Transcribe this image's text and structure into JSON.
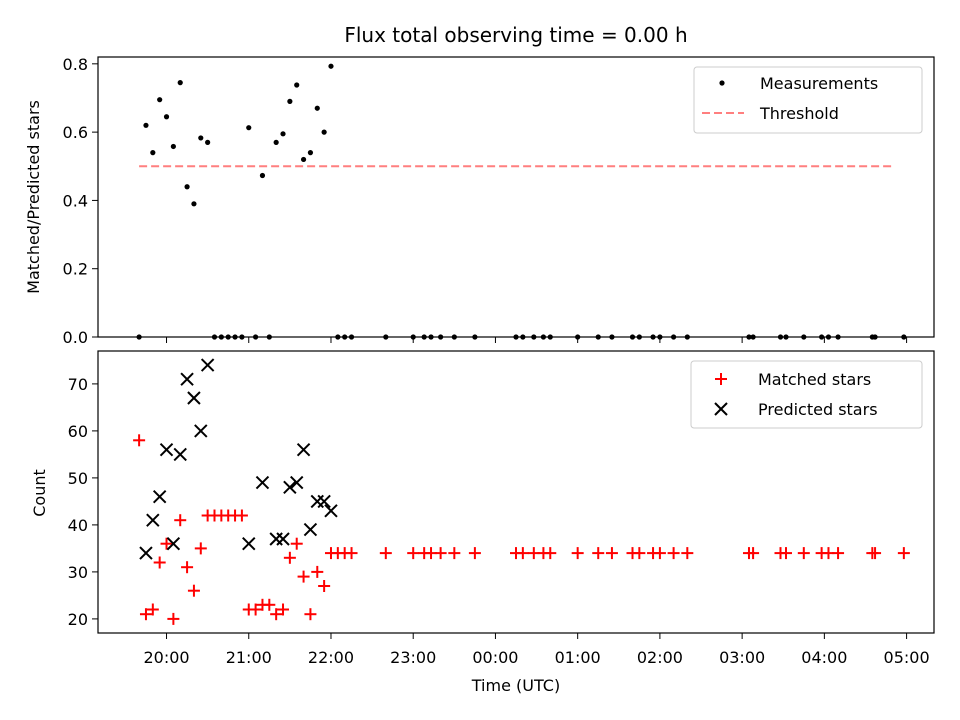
{
  "chart_data": [
    {
      "type": "scatter",
      "title": "Flux total observing time = 0.00 h",
      "xlabel": "",
      "ylabel": "Matched/Predicted stars",
      "ylim": [
        0,
        0.82
      ],
      "yticks": [
        "0.0",
        "0.2",
        "0.4",
        "0.6",
        "0.8"
      ],
      "ytick_values": [
        0,
        0.2,
        0.4,
        0.6,
        0.8
      ],
      "legend": {
        "placement": "top-right",
        "entries": [
          "Measurements",
          "Threshold"
        ]
      },
      "threshold": {
        "name": "Threshold",
        "value": 0.5,
        "x_start": "19:40",
        "x_end": "04:50",
        "color": "#ff7f7f"
      },
      "series": [
        {
          "name": "Measurements",
          "marker": "dot",
          "color": "#000000",
          "points": [
            [
              "19:40",
              0.0
            ],
            [
              "19:45",
              0.62
            ],
            [
              "19:50",
              0.54
            ],
            [
              "19:55",
              0.695
            ],
            [
              "20:00",
              0.645
            ],
            [
              "20:05",
              0.558
            ],
            [
              "20:10",
              0.745
            ],
            [
              "20:15",
              0.44
            ],
            [
              "20:20",
              0.39
            ],
            [
              "20:25",
              0.583
            ],
            [
              "20:30",
              0.57
            ],
            [
              "20:35",
              0.0
            ],
            [
              "20:40",
              0.0
            ],
            [
              "20:45",
              0.0
            ],
            [
              "20:50",
              0.0
            ],
            [
              "20:55",
              0.0
            ],
            [
              "21:00",
              0.613
            ],
            [
              "21:05",
              0.0
            ],
            [
              "21:10",
              0.473
            ],
            [
              "21:15",
              0.0
            ],
            [
              "21:20",
              0.57
            ],
            [
              "21:25",
              0.595
            ],
            [
              "21:30",
              0.69
            ],
            [
              "21:35",
              0.738
            ],
            [
              "21:40",
              0.52
            ],
            [
              "21:45",
              0.54
            ],
            [
              "21:50",
              0.67
            ],
            [
              "21:55",
              0.6
            ],
            [
              "22:00",
              0.793
            ],
            [
              "22:05",
              0.0
            ],
            [
              "22:10",
              0.0
            ],
            [
              "22:15",
              0.0
            ],
            [
              "22:40",
              0.0
            ],
            [
              "23:00",
              0.0
            ],
            [
              "23:08",
              0.0
            ],
            [
              "23:13",
              0.0
            ],
            [
              "23:20",
              0.0
            ],
            [
              "23:30",
              0.0
            ],
            [
              "23:45",
              0.0
            ],
            [
              "00:15",
              0.0
            ],
            [
              "00:20",
              0.0
            ],
            [
              "00:28",
              0.0
            ],
            [
              "00:35",
              0.0
            ],
            [
              "00:40",
              0.0
            ],
            [
              "01:00",
              0.0
            ],
            [
              "01:15",
              0.0
            ],
            [
              "01:25",
              0.0
            ],
            [
              "01:40",
              0.0
            ],
            [
              "01:45",
              0.0
            ],
            [
              "01:55",
              0.0
            ],
            [
              "02:00",
              0.0
            ],
            [
              "02:10",
              0.0
            ],
            [
              "02:20",
              0.0
            ],
            [
              "03:05",
              0.0
            ],
            [
              "03:08",
              0.0
            ],
            [
              "03:28",
              0.0
            ],
            [
              "03:32",
              0.0
            ],
            [
              "03:45",
              0.0
            ],
            [
              "03:58",
              0.0
            ],
            [
              "04:03",
              0.0
            ],
            [
              "04:10",
              0.0
            ],
            [
              "04:35",
              0.0
            ],
            [
              "04:37",
              0.0
            ],
            [
              "04:58",
              0.0
            ]
          ]
        }
      ]
    },
    {
      "type": "scatter",
      "title": "",
      "xlabel": "Time (UTC)",
      "ylabel": "Count",
      "ylim": [
        17,
        77
      ],
      "yticks": [
        "20",
        "30",
        "40",
        "50",
        "60",
        "70"
      ],
      "ytick_values": [
        20,
        30,
        40,
        50,
        60,
        70
      ],
      "xticks": [
        "20:00",
        "21:00",
        "22:00",
        "23:00",
        "00:00",
        "01:00",
        "02:00",
        "03:00",
        "04:00",
        "05:00"
      ],
      "xlim": [
        "19:10",
        "05:20"
      ],
      "legend": {
        "placement": "top-right",
        "entries": [
          "Matched stars",
          "Predicted stars"
        ]
      },
      "series": [
        {
          "name": "Matched stars",
          "marker": "plus",
          "color": "#ff0000",
          "points": [
            [
              "19:40",
              58
            ],
            [
              "19:45",
              21
            ],
            [
              "19:50",
              22
            ],
            [
              "19:55",
              32
            ],
            [
              "20:00",
              36
            ],
            [
              "20:05",
              20
            ],
            [
              "20:10",
              41
            ],
            [
              "20:15",
              31
            ],
            [
              "20:20",
              26
            ],
            [
              "20:25",
              35
            ],
            [
              "20:30",
              42
            ],
            [
              "20:35",
              42
            ],
            [
              "20:40",
              42
            ],
            [
              "20:45",
              42
            ],
            [
              "20:50",
              42
            ],
            [
              "20:55",
              42
            ],
            [
              "21:00",
              22
            ],
            [
              "21:05",
              22
            ],
            [
              "21:10",
              23
            ],
            [
              "21:15",
              23
            ],
            [
              "21:20",
              21
            ],
            [
              "21:25",
              22
            ],
            [
              "21:30",
              33
            ],
            [
              "21:35",
              36
            ],
            [
              "21:40",
              29
            ],
            [
              "21:45",
              21
            ],
            [
              "21:50",
              30
            ],
            [
              "21:55",
              27
            ],
            [
              "22:00",
              34
            ],
            [
              "22:05",
              34
            ],
            [
              "22:10",
              34
            ],
            [
              "22:15",
              34
            ],
            [
              "22:40",
              34
            ],
            [
              "23:00",
              34
            ],
            [
              "23:08",
              34
            ],
            [
              "23:13",
              34
            ],
            [
              "23:20",
              34
            ],
            [
              "23:30",
              34
            ],
            [
              "23:45",
              34
            ],
            [
              "00:15",
              34
            ],
            [
              "00:20",
              34
            ],
            [
              "00:28",
              34
            ],
            [
              "00:35",
              34
            ],
            [
              "00:40",
              34
            ],
            [
              "01:00",
              34
            ],
            [
              "01:15",
              34
            ],
            [
              "01:25",
              34
            ],
            [
              "01:40",
              34
            ],
            [
              "01:45",
              34
            ],
            [
              "01:55",
              34
            ],
            [
              "02:00",
              34
            ],
            [
              "02:10",
              34
            ],
            [
              "02:20",
              34
            ],
            [
              "03:05",
              34
            ],
            [
              "03:08",
              34
            ],
            [
              "03:28",
              34
            ],
            [
              "03:32",
              34
            ],
            [
              "03:45",
              34
            ],
            [
              "03:58",
              34
            ],
            [
              "04:03",
              34
            ],
            [
              "04:10",
              34
            ],
            [
              "04:35",
              34
            ],
            [
              "04:37",
              34
            ],
            [
              "04:58",
              34
            ]
          ]
        },
        {
          "name": "Predicted stars",
          "marker": "cross",
          "color": "#000000",
          "points": [
            [
              "19:45",
              34
            ],
            [
              "19:50",
              41
            ],
            [
              "19:55",
              46
            ],
            [
              "20:00",
              56
            ],
            [
              "20:05",
              36
            ],
            [
              "20:10",
              55
            ],
            [
              "20:15",
              71
            ],
            [
              "20:20",
              67
            ],
            [
              "20:25",
              60
            ],
            [
              "20:30",
              74
            ],
            [
              "21:00",
              36
            ],
            [
              "21:10",
              49
            ],
            [
              "21:20",
              37
            ],
            [
              "21:25",
              37
            ],
            [
              "21:30",
              48
            ],
            [
              "21:35",
              49
            ],
            [
              "21:40",
              56
            ],
            [
              "21:45",
              39
            ],
            [
              "21:50",
              45
            ],
            [
              "21:55",
              45
            ],
            [
              "22:00",
              43
            ]
          ]
        }
      ]
    }
  ]
}
